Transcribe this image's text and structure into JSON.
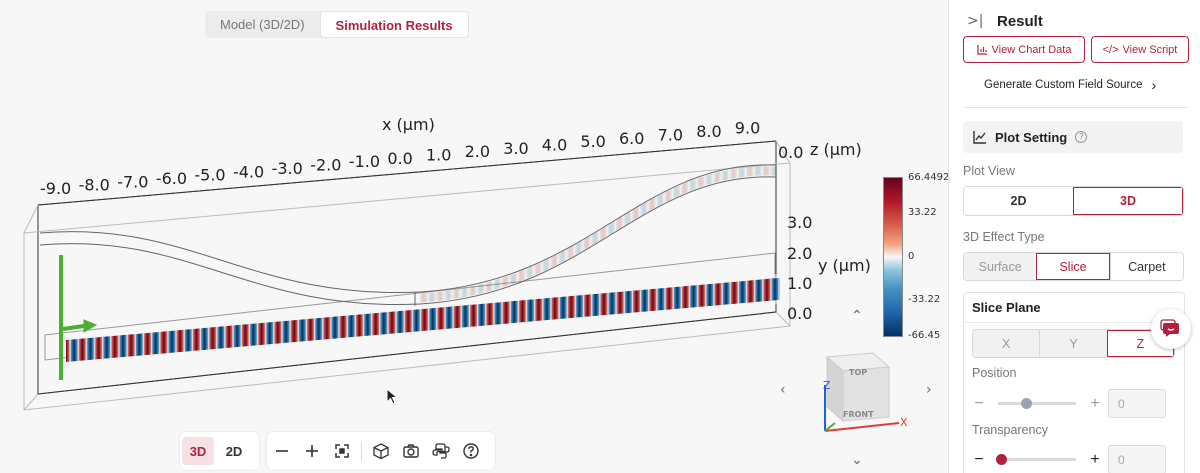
{
  "tabs": [
    {
      "label": "Model (3D/2D)",
      "active": false
    },
    {
      "label": "Simulation Results",
      "active": true
    }
  ],
  "plot": {
    "x_axis_label": "x (μm)",
    "y_axis_label": "y (μm)",
    "z_axis_label": "z (μm)",
    "x_ticks": [
      "-9.0",
      "-8.0",
      "-7.0",
      "-6.0",
      "-5.0",
      "-4.0",
      "-3.0",
      "-2.0",
      "-1.0",
      "0.0",
      "1.0",
      "2.0",
      "3.0",
      "4.0",
      "5.0",
      "6.0",
      "7.0",
      "8.0",
      "9.0"
    ],
    "y_ticks": [
      "3.0",
      "2.0",
      "1.0",
      "0.0"
    ],
    "z_tick": "0.0"
  },
  "colorbar": {
    "max": "66.4492",
    "mid_high": "33.22",
    "zero": "0",
    "mid_low": "-33.22",
    "min": "-66.45"
  },
  "viewcube": {
    "top": "TOP",
    "front": "FRONT",
    "axis_x": "X",
    "axis_z": "Z"
  },
  "toolbar": {
    "mode_3d": "3D",
    "mode_2d": "2D",
    "icons": [
      "zoom-out-icon",
      "zoom-in-icon",
      "fit-view-icon",
      "cube-view-icon",
      "screenshot-icon",
      "python-icon",
      "help-icon"
    ]
  },
  "panel": {
    "title": "Result",
    "view_chart_data": "View Chart Data",
    "view_script": "View Script",
    "generate_custom_field": "Generate Custom Field Source",
    "plot_setting": "Plot Setting",
    "plot_view_label": "Plot View",
    "plot_view_options": [
      "2D",
      "3D"
    ],
    "effect_type_label": "3D Effect Type",
    "effect_type_options": [
      "Surface",
      "Slice",
      "Carpet"
    ],
    "slice_plane_label": "Slice Plane",
    "slice_plane_options": [
      "X",
      "Y",
      "Z"
    ],
    "position_label": "Position",
    "position_value": "0",
    "transparency_label": "Transparency",
    "transparency_value": "0"
  },
  "colors": {
    "accent": "#b3223c",
    "positive": "#b2182b",
    "negative": "#2166ac",
    "axis_green": "#4caf35"
  }
}
